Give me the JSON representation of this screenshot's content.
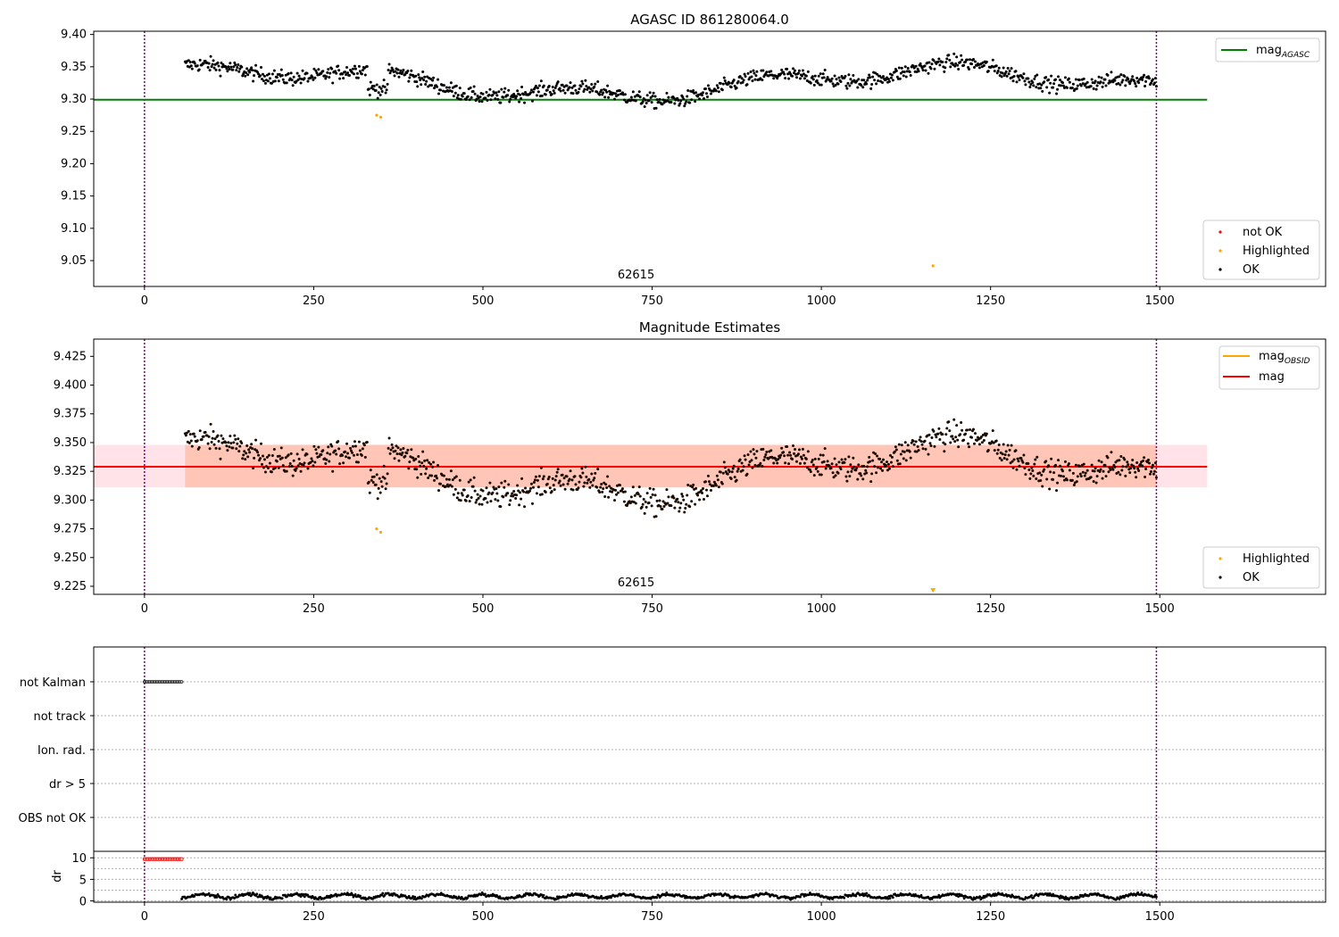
{
  "chart_data": [
    {
      "type": "scatter",
      "title": "AGASC ID 861280064.0",
      "xlim": [
        -75,
        1745
      ],
      "ylim": [
        9.01,
        9.405
      ],
      "xticks": [
        0,
        250,
        500,
        750,
        1000,
        1250,
        1500
      ],
      "yticks": [
        9.05,
        9.1,
        9.15,
        9.2,
        9.25,
        9.3,
        9.35,
        9.4
      ],
      "ytick_labels": [
        "9.05",
        "9.10",
        "9.15",
        "9.20",
        "9.25",
        "9.30",
        "9.35",
        "9.40"
      ],
      "vlines": [
        0,
        1495
      ],
      "hline": {
        "name": "mag_AGASC",
        "y": 9.299,
        "x_range": [
          -75,
          1570
        ],
        "color": "#008000"
      },
      "obsid_label": {
        "text": "62615",
        "x": 750
      },
      "series_generator": {
        "x_range": [
          60,
          1495
        ],
        "count": 1100,
        "baseline": 9.33,
        "noise": 0.011
      },
      "highlighted_points": [
        [
          343,
          9.275
        ],
        [
          349,
          9.272
        ],
        [
          1165,
          9.042
        ]
      ],
      "legend_lines": [
        {
          "label": "mag",
          "subscript": "AGASC",
          "color": "#008000"
        }
      ],
      "legend_points": [
        {
          "label": "not OK",
          "color": "#ff0000"
        },
        {
          "label": "Highlighted",
          "color": "#ffa500"
        },
        {
          "label": "OK",
          "color": "#000000"
        }
      ]
    },
    {
      "type": "scatter",
      "title": "Magnitude Estimates",
      "xlim": [
        -75,
        1745
      ],
      "ylim": [
        9.218,
        9.44
      ],
      "xticks": [
        0,
        250,
        500,
        750,
        1000,
        1250,
        1500
      ],
      "yticks": [
        9.225,
        9.25,
        9.275,
        9.3,
        9.325,
        9.35,
        9.375,
        9.4,
        9.425
      ],
      "ytick_labels": [
        "9.225",
        "9.250",
        "9.275",
        "9.300",
        "9.325",
        "9.350",
        "9.375",
        "9.400",
        "9.425"
      ],
      "vlines": [
        0,
        1495
      ],
      "mag_line": {
        "name": "mag",
        "y": 9.329,
        "x_range": [
          -75,
          1570
        ],
        "color": "#ff0000"
      },
      "mag_band": {
        "y_low": 9.311,
        "y_high": 9.348,
        "x_range": [
          -75,
          1570
        ],
        "color": "#ffc0cb"
      },
      "obsid_band": {
        "y_low": 9.311,
        "y_high": 9.348,
        "x_range": [
          60,
          1495
        ],
        "color": "#ffa07a"
      },
      "obsid_line": {
        "name": "mag_OBSID",
        "y": 9.329,
        "color": "#ffa500"
      },
      "obsid_label": {
        "text": "62615",
        "x": 750
      },
      "highlighted_points": [
        [
          343,
          9.275
        ],
        [
          349,
          9.272
        ]
      ],
      "marker_point": {
        "x": 1165,
        "y": 9.221,
        "color": "#ffa500"
      },
      "legend_lines": [
        {
          "label": "mag",
          "subscript": "OBSID",
          "color": "#ffa500"
        },
        {
          "label": "mag",
          "subscript": "",
          "color": "#ff0000"
        }
      ],
      "legend_points": [
        {
          "label": "Highlighted",
          "color": "#ffa500"
        },
        {
          "label": "OK",
          "color": "#000000"
        }
      ]
    },
    {
      "type": "scatter",
      "title": "",
      "xlim": [
        -75,
        1745
      ],
      "categories": [
        "not Kalman",
        "not track",
        "Ion. rad.",
        "dr > 5",
        "OBS not OK"
      ],
      "flag_points": {
        "category": "not Kalman",
        "x_range": [
          0,
          55
        ],
        "count": 28
      },
      "vlines": [
        0,
        1495
      ]
    },
    {
      "type": "scatter",
      "title": "",
      "ylabel": "dr",
      "xlim": [
        -75,
        1745
      ],
      "ylim": [
        -0.3,
        11.5
      ],
      "xticks": [
        0,
        250,
        500,
        750,
        1000,
        1250,
        1500
      ],
      "yticks": [
        0,
        5,
        10
      ],
      "ytick_labels": [
        "0",
        "5",
        "10"
      ],
      "vlines": [
        0,
        1495
      ],
      "flag_points": {
        "y": 9.7,
        "x_range": [
          0,
          55
        ],
        "count": 28,
        "color": "#ff0000"
      },
      "series_generator": {
        "x_range": [
          55,
          1495
        ],
        "count": 1000,
        "baseline": 1.1,
        "noise": 0.35
      }
    }
  ]
}
